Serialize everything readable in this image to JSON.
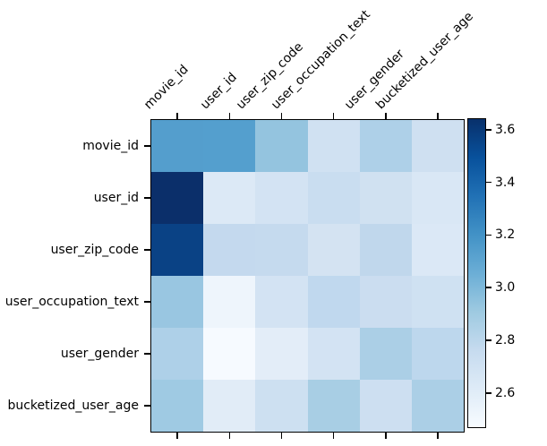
{
  "figure": {
    "background": "#ffffff",
    "title": ""
  },
  "chart_data": {
    "type": "heatmap",
    "colormap": "Blues",
    "title": "",
    "xlabel": "",
    "ylabel": "",
    "x_axis_position": "top",
    "grid": false,
    "x_labels": [
      "movie_id",
      "user_id",
      "user_zip_code",
      "user_occupation_text",
      "user_gender",
      "bucketized_user_age"
    ],
    "y_labels": [
      "movie_id",
      "user_id",
      "user_zip_code",
      "user_occupation_text",
      "user_gender",
      "bucketized_user_age"
    ],
    "values": [
      [
        3.13,
        3.12,
        2.93,
        2.7,
        2.84,
        2.7
      ],
      [
        3.63,
        2.63,
        2.67,
        2.73,
        2.7,
        2.65
      ],
      [
        3.56,
        2.76,
        2.76,
        2.67,
        2.78,
        2.63
      ],
      [
        2.91,
        2.51,
        2.67,
        2.77,
        2.72,
        2.7
      ],
      [
        2.85,
        2.48,
        2.58,
        2.67,
        2.85,
        2.78
      ],
      [
        2.89,
        2.6,
        2.71,
        2.86,
        2.72,
        2.85
      ]
    ],
    "cell_colors": [
      [
        "#549ecd",
        "#549fce",
        "#94c4df",
        "#d0e1f2",
        "#aed0e8",
        "#cfe0f1"
      ],
      [
        "#0b2f6a",
        "#dce9f6",
        "#d3e3f3",
        "#c9ddf0",
        "#d0e1f1",
        "#d9e7f5"
      ],
      [
        "#0a4285",
        "#c4d9ee",
        "#c5daee",
        "#d4e3f2",
        "#c0d7ec",
        "#dbe8f6"
      ],
      [
        "#99c6e1",
        "#eef5fc",
        "#d3e3f3",
        "#c0d8ee",
        "#cbddf0",
        "#cfe1f2"
      ],
      [
        "#aed0e8",
        "#f6faff",
        "#e3edf8",
        "#d3e3f3",
        "#abcfe6",
        "#bdd7ed"
      ],
      [
        "#9fcae3",
        "#e1ecf7",
        "#cde0f1",
        "#a8cee4",
        "#cddff1",
        "#abcfe6"
      ]
    ],
    "colorbar": {
      "position": "right",
      "vmin": 2.47,
      "vmax": 3.64,
      "tick_values": [
        3.6,
        3.4,
        3.2,
        3.0,
        2.8,
        2.6
      ],
      "tick_labels": [
        "3.6",
        "3.4",
        "3.2",
        "3.0",
        "2.8",
        "2.6"
      ],
      "gradient_stops": [
        "#f7fbff",
        "#deebf7",
        "#c6dbef",
        "#9ecae1",
        "#6baed6",
        "#4292c6",
        "#2171b5",
        "#08519c",
        "#08306b"
      ]
    },
    "axis_color": "#000000"
  }
}
